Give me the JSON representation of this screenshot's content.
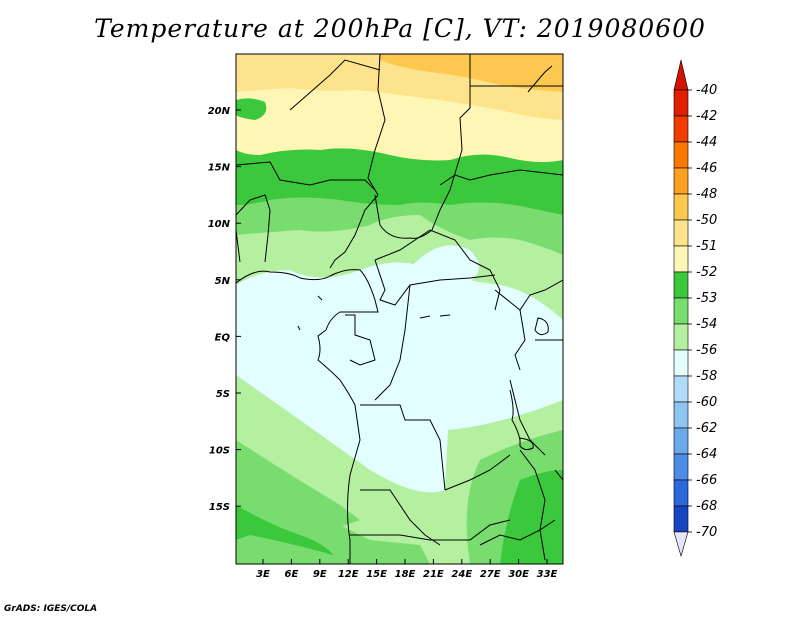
{
  "title": "Temperature at 200hPa [C], VT: 2019080600",
  "credit": "GrADS: IGES/COLA",
  "map": {
    "x_ticks": [
      "3E",
      "6E",
      "9E",
      "12E",
      "15E",
      "18E",
      "21E",
      "24E",
      "27E",
      "30E",
      "33E"
    ],
    "y_ticks": [
      "20N",
      "15N",
      "10N",
      "5N",
      "EQ",
      "5S",
      "10S",
      "15S"
    ]
  },
  "legend": {
    "levels": [
      {
        "label": "-40",
        "color": "#e01e00"
      },
      {
        "label": "-42",
        "color": "#f03c00"
      },
      {
        "label": "-44",
        "color": "#fa7800"
      },
      {
        "label": "-46",
        "color": "#fca020"
      },
      {
        "label": "-48",
        "color": "#fcc850"
      },
      {
        "label": "-50",
        "color": "#fde48c"
      },
      {
        "label": "-51",
        "color": "#fef6b4"
      },
      {
        "label": "-52",
        "color": "#3cc83c"
      },
      {
        "label": "-53",
        "color": "#78dc6e"
      },
      {
        "label": "-54",
        "color": "#b4f0a0"
      },
      {
        "label": "-56",
        "color": "#e2fefe"
      },
      {
        "label": "-58",
        "color": "#b0dcfa"
      },
      {
        "label": "-60",
        "color": "#8cc4f2"
      },
      {
        "label": "-62",
        "color": "#6aaaea"
      },
      {
        "label": "-64",
        "color": "#4a8ce6"
      },
      {
        "label": "-66",
        "color": "#2c6adc"
      },
      {
        "label": "-68",
        "color": "#1846c0"
      },
      {
        "label": "-70",
        "color": "#0a1c82"
      }
    ],
    "top_color": "#d21400",
    "bottom_color": "#e6e6fa"
  }
}
